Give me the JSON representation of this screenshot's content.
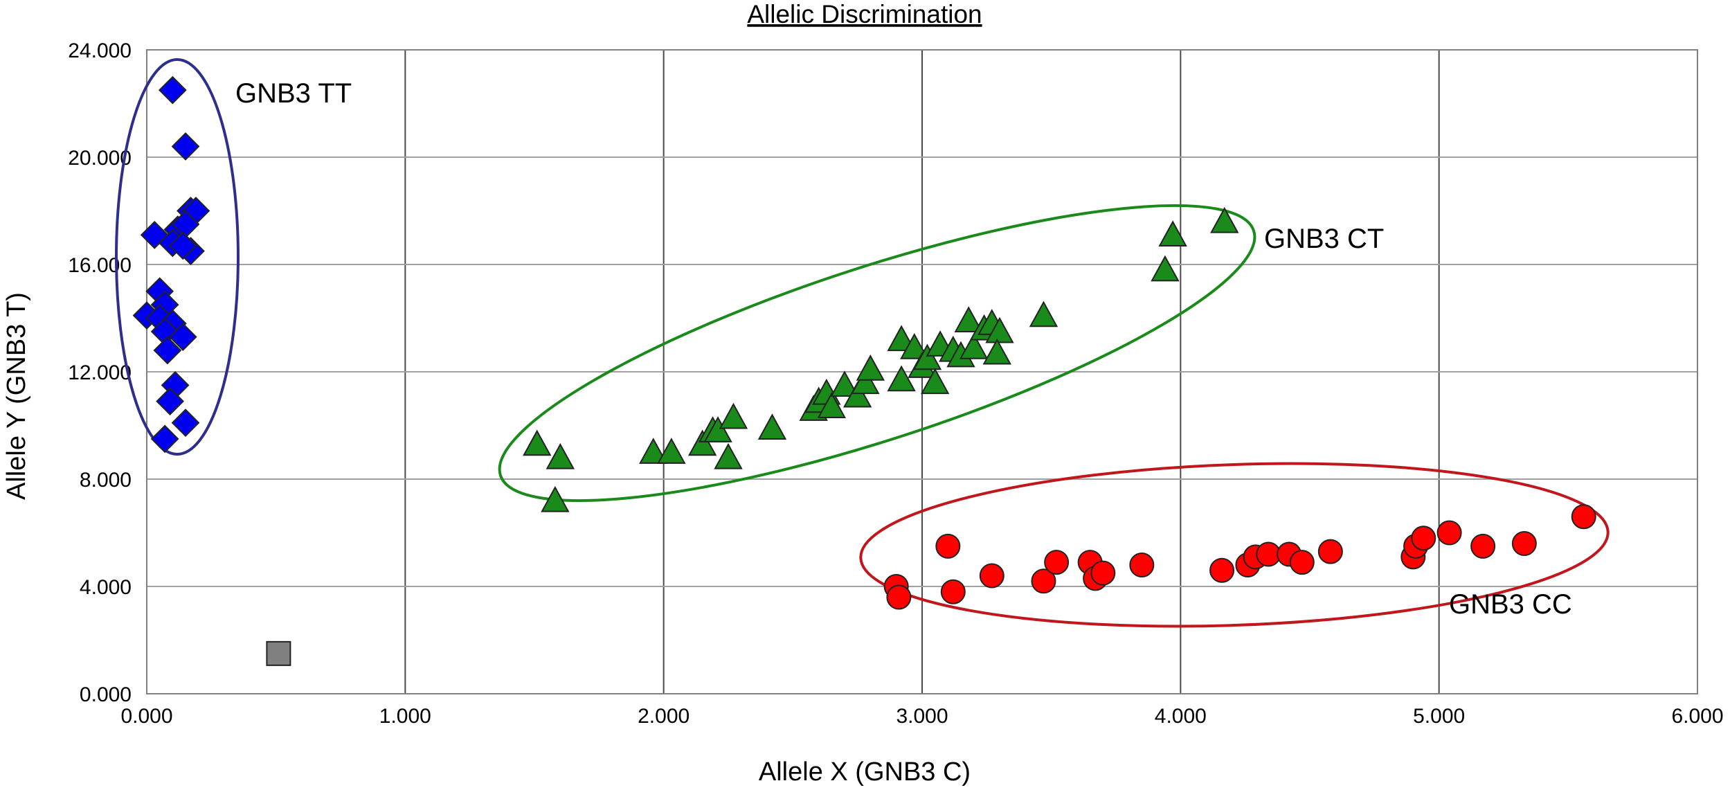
{
  "chart_data": {
    "type": "scatter",
    "title": "Allelic Discrimination",
    "xlabel": "Allele X (GNB3 C)",
    "ylabel": "Allele Y (GNB3 T)",
    "xlim": [
      0,
      6
    ],
    "ylim": [
      0,
      24
    ],
    "x_ticks": [
      0,
      1,
      2,
      3,
      4,
      5,
      6
    ],
    "y_ticks": [
      0,
      4,
      8,
      12,
      16,
      20,
      24
    ],
    "x_tick_labels": [
      "0.000",
      "1.000",
      "2.000",
      "3.000",
      "4.000",
      "5.000",
      "6.000"
    ],
    "y_tick_labels": [
      "0.000",
      "4.000",
      "8.000",
      "12.000",
      "16.000",
      "20.000",
      "24.000"
    ],
    "grid": {
      "vertical": true,
      "horizontal": true
    },
    "series": [
      {
        "marker": "diamond",
        "color": "#0000ee",
        "points": [
          [
            0.1,
            22.5
          ],
          [
            0.15,
            20.4
          ],
          [
            0.17,
            18.0
          ],
          [
            0.19,
            18.0
          ],
          [
            0.03,
            17.1
          ],
          [
            0.12,
            17.3
          ],
          [
            0.15,
            17.5
          ],
          [
            0.1,
            16.8
          ],
          [
            0.17,
            16.5
          ],
          [
            0.14,
            16.7
          ],
          [
            0.05,
            15.0
          ],
          [
            0.07,
            14.5
          ],
          [
            0.0,
            14.1
          ],
          [
            0.05,
            14.0
          ],
          [
            0.1,
            13.8
          ],
          [
            0.07,
            13.5
          ],
          [
            0.14,
            13.3
          ],
          [
            0.08,
            12.8
          ],
          [
            0.11,
            11.5
          ],
          [
            0.09,
            10.9
          ],
          [
            0.15,
            10.1
          ],
          [
            0.07,
            9.5
          ]
        ]
      },
      {
        "marker": "triangle",
        "color": "#1a8a1a",
        "points": [
          [
            1.51,
            9.3
          ],
          [
            1.6,
            8.8
          ],
          [
            1.58,
            7.2
          ],
          [
            1.96,
            9.0
          ],
          [
            2.03,
            9.0
          ],
          [
            2.15,
            9.3
          ],
          [
            2.19,
            9.8
          ],
          [
            2.21,
            9.8
          ],
          [
            2.25,
            8.8
          ],
          [
            2.27,
            10.3
          ],
          [
            2.42,
            9.9
          ],
          [
            2.58,
            10.6
          ],
          [
            2.6,
            10.9
          ],
          [
            2.63,
            11.2
          ],
          [
            2.65,
            10.7
          ],
          [
            2.7,
            11.5
          ],
          [
            2.75,
            11.1
          ],
          [
            2.78,
            11.6
          ],
          [
            2.8,
            12.1
          ],
          [
            2.92,
            11.7
          ],
          [
            2.92,
            13.2
          ],
          [
            2.97,
            12.9
          ],
          [
            3.0,
            12.2
          ],
          [
            3.02,
            12.5
          ],
          [
            3.05,
            11.6
          ],
          [
            3.07,
            13.0
          ],
          [
            3.12,
            12.8
          ],
          [
            3.15,
            12.6
          ],
          [
            3.18,
            13.9
          ],
          [
            3.2,
            12.9
          ],
          [
            3.24,
            13.6
          ],
          [
            3.27,
            13.8
          ],
          [
            3.3,
            13.5
          ],
          [
            3.29,
            12.7
          ],
          [
            3.47,
            14.1
          ],
          [
            3.94,
            15.8
          ],
          [
            3.97,
            17.1
          ],
          [
            4.17,
            17.6
          ]
        ]
      },
      {
        "marker": "circle",
        "color": "#ff0000",
        "points": [
          [
            2.9,
            4.0
          ],
          [
            2.91,
            3.6
          ],
          [
            3.1,
            5.5
          ],
          [
            3.12,
            3.8
          ],
          [
            3.27,
            4.4
          ],
          [
            3.47,
            4.2
          ],
          [
            3.52,
            4.9
          ],
          [
            3.65,
            4.9
          ],
          [
            3.67,
            4.3
          ],
          [
            3.7,
            4.5
          ],
          [
            3.85,
            4.8
          ],
          [
            4.16,
            4.6
          ],
          [
            4.26,
            4.8
          ],
          [
            4.29,
            5.1
          ],
          [
            4.34,
            5.2
          ],
          [
            4.42,
            5.2
          ],
          [
            4.47,
            4.9
          ],
          [
            4.58,
            5.3
          ],
          [
            4.9,
            5.1
          ],
          [
            4.91,
            5.5
          ],
          [
            4.94,
            5.8
          ],
          [
            5.04,
            6.0
          ],
          [
            5.17,
            5.5
          ],
          [
            5.33,
            5.6
          ],
          [
            5.56,
            6.6
          ]
        ]
      },
      {
        "marker": "square",
        "color": "#808080",
        "points": [
          [
            0.51,
            1.5
          ]
        ]
      }
    ],
    "clusters": [
      {
        "label": "GNB3 TT",
        "color": "#2e2e8c"
      },
      {
        "label": "GNB3 CT",
        "color": "#1a8a1a"
      },
      {
        "label": "GNB3 CC",
        "color": "#c0161c"
      }
    ]
  }
}
